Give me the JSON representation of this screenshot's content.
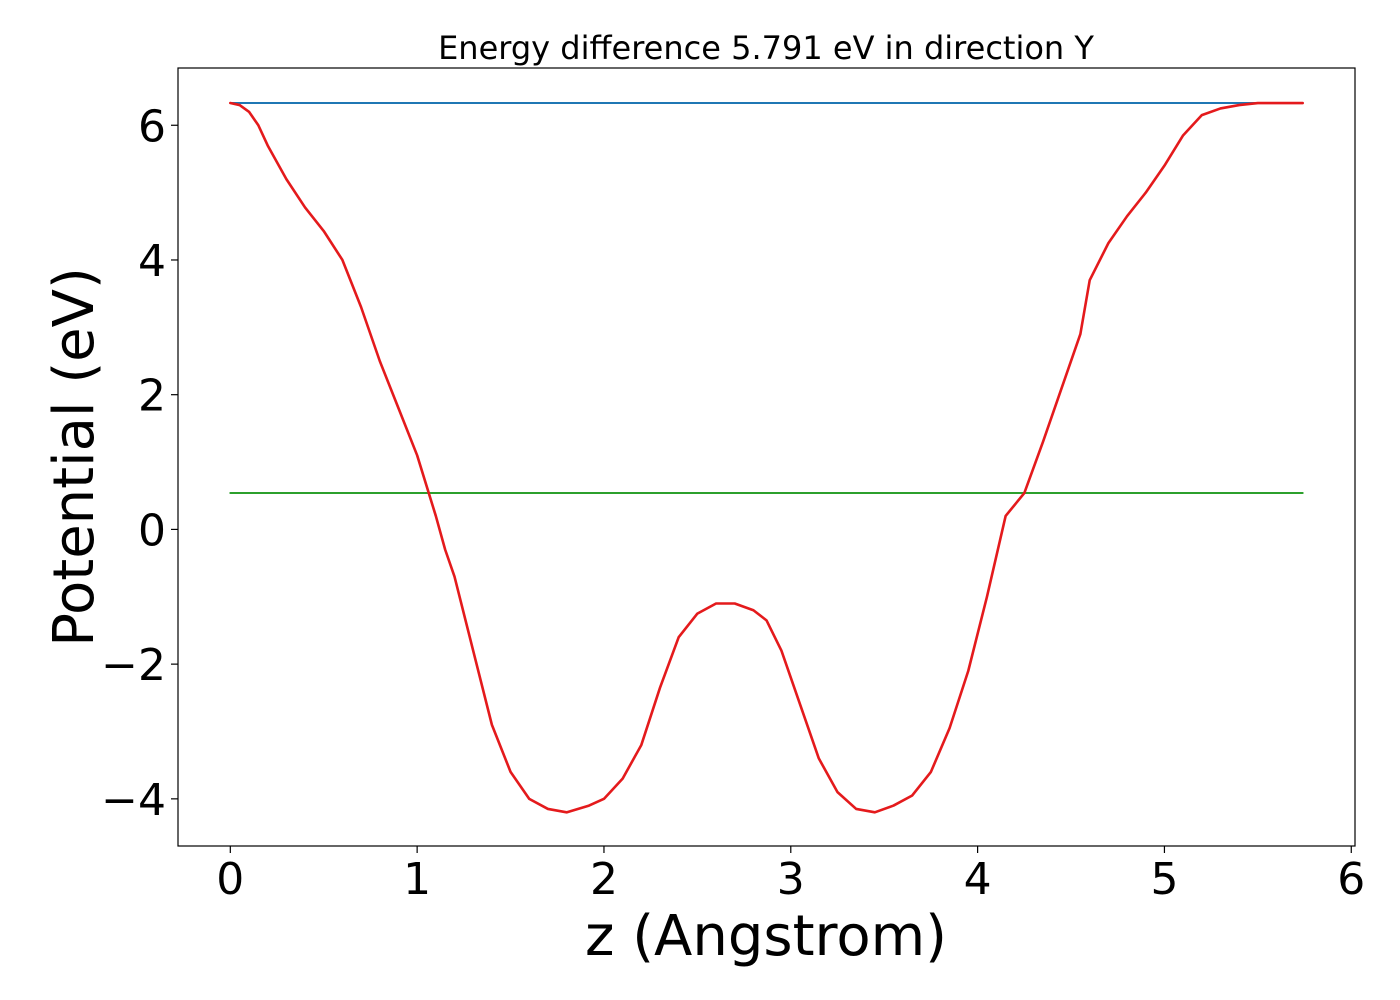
{
  "chart_data": {
    "type": "line",
    "title": "Energy difference 5.791 eV in direction Y",
    "xlabel": "z (Angstrom)",
    "ylabel": "Potential (eV)",
    "xlim": [
      -0.28,
      6.02
    ],
    "ylim": [
      -4.7,
      6.85
    ],
    "xticks": [
      0,
      1,
      2,
      3,
      4,
      5,
      6
    ],
    "xtick_labels": [
      "0",
      "1",
      "2",
      "3",
      "4",
      "5",
      "6"
    ],
    "yticks": [
      -4,
      -2,
      0,
      2,
      4,
      6
    ],
    "ytick_labels": [
      "−4",
      "−2",
      "0",
      "2",
      "4",
      "6"
    ],
    "grid": false,
    "series": [
      {
        "color": "#1f77b4",
        "x": [
          0,
          5.74
        ],
        "y": [
          6.33,
          6.33
        ]
      },
      {
        "color": "#2ca02c",
        "x": [
          0,
          5.74
        ],
        "y": [
          0.54,
          0.54
        ]
      },
      {
        "color": "#e41a1c",
        "x": [
          0.0,
          0.05,
          0.1,
          0.15,
          0.2,
          0.3,
          0.4,
          0.5,
          0.6,
          0.7,
          0.8,
          0.9,
          1.0,
          1.1,
          1.15,
          1.2,
          1.3,
          1.4,
          1.5,
          1.6,
          1.7,
          1.8,
          1.92,
          2.0,
          2.1,
          2.2,
          2.3,
          2.4,
          2.5,
          2.6,
          2.7,
          2.8,
          2.87,
          2.95,
          3.05,
          3.15,
          3.25,
          3.35,
          3.45,
          3.55,
          3.65,
          3.75,
          3.85,
          3.95,
          4.05,
          4.15,
          4.25,
          4.35,
          4.45,
          4.55,
          4.6,
          4.7,
          4.8,
          4.9,
          5.0,
          5.1,
          5.2,
          5.3,
          5.4,
          5.5,
          5.6,
          5.65,
          5.7,
          5.74
        ],
        "y": [
          6.33,
          6.3,
          6.2,
          6.0,
          5.7,
          5.2,
          4.78,
          4.43,
          4.0,
          3.3,
          2.5,
          1.8,
          1.1,
          0.2,
          -0.3,
          -0.7,
          -1.8,
          -2.9,
          -3.6,
          -4.0,
          -4.15,
          -4.2,
          -4.1,
          -4.0,
          -3.7,
          -3.2,
          -2.35,
          -1.6,
          -1.25,
          -1.1,
          -1.1,
          -1.2,
          -1.35,
          -1.8,
          -2.6,
          -3.4,
          -3.9,
          -4.15,
          -4.2,
          -4.1,
          -3.95,
          -3.6,
          -2.95,
          -2.1,
          -1.0,
          0.2,
          0.54,
          1.3,
          2.1,
          2.9,
          3.7,
          4.25,
          4.65,
          5.0,
          5.4,
          5.85,
          6.15,
          6.25,
          6.3,
          6.33,
          6.33,
          6.33,
          6.33,
          6.33
        ]
      }
    ]
  }
}
